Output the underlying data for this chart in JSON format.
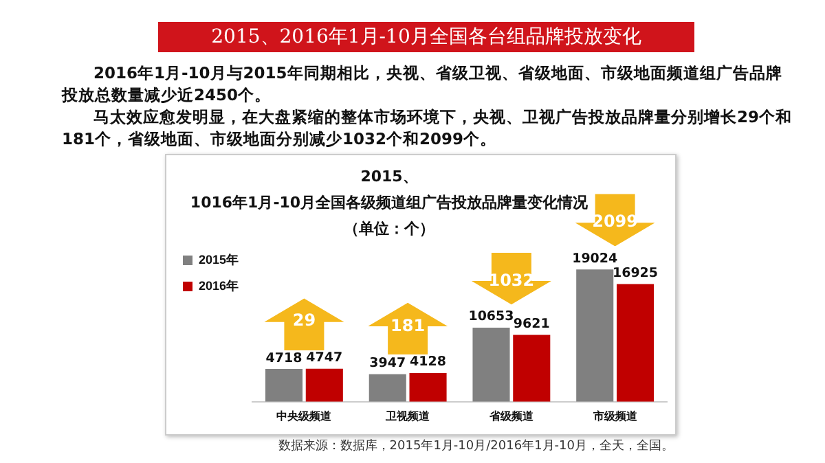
{
  "chart_data": {
    "type": "bar",
    "title": "2015、2016年1月-10月全国各台组品牌投放变化",
    "subtitle": "2015、1016年1月-10月全国各级频道组广告投放品牌量变化情况（单位：个）",
    "categories": [
      "中央级频道",
      "卫视频道",
      "省级频道",
      "市级频道"
    ],
    "series": [
      {
        "name": "2015年",
        "color": "#808080",
        "values": [
          4718,
          3947,
          10653,
          19024
        ]
      },
      {
        "name": "2016年",
        "color": "#c00000",
        "values": [
          4747,
          4128,
          9621,
          16925
        ]
      }
    ],
    "data_labels": true,
    "legend": "top left",
    "grid": false,
    "annotations": [
      "2016年1月-10月与2015年同期相比，央视、省级卫视、省级地面、市级地面频道组广告品牌投放总数量减少近2450个。",
      "马太效应愈发明显，在大盘紧缩的整体市场环境下，央视、卫视广告投放品牌量分别增长29个和181个，省级地面、市级地面分别减少1032个和2099个。",
      "29",
      "181",
      "1032",
      "2099",
      "数据来源：数据库，2015年1月-10月/2016年1月-10月，全天，全国。"
    ]
  }
}
